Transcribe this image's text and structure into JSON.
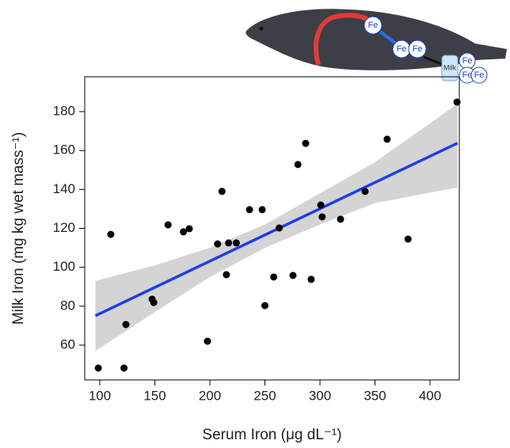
{
  "chart_data": {
    "type": "scatter",
    "x_label": "Serum Iron (μg dL⁻¹)",
    "y_label": "Milk Iron (mg kg wet mass⁻¹)",
    "xlim": [
      86.3,
      426.6
    ],
    "ylim": [
      42.1,
      197.9
    ],
    "xticks": [
      100,
      150,
      200,
      250,
      300,
      350,
      400
    ],
    "yticks": [
      60,
      80,
      100,
      120,
      140,
      160,
      180
    ],
    "color": "#000000",
    "x": [
      98.6,
      110,
      122,
      123.7,
      147.5,
      149,
      162,
      176,
      181.3,
      197.8,
      207,
      211,
      215,
      217,
      224,
      236,
      247.5,
      250,
      258,
      263,
      275.5,
      280,
      287,
      292,
      300.7,
      302,
      318.7,
      341,
      361,
      380,
      424.5
    ],
    "values": [
      48.2,
      116.9,
      48.2,
      70.6,
      83.6,
      81.9,
      121.8,
      118.2,
      119.8,
      62,
      112,
      139,
      96.2,
      112.5,
      112.5,
      129.6,
      129.6,
      80.3,
      95,
      120.2,
      95.8,
      152.8,
      163.7,
      93.8,
      132,
      125.9,
      124.7,
      139,
      165.8,
      114.5,
      184.9
    ],
    "fit": {
      "color": "#1a3fe6",
      "x": [
        96,
        425
      ],
      "values": [
        75.1,
        163.8
      ]
    },
    "band": {
      "color": "#d4d4d4",
      "x": [
        96,
        150,
        200,
        250,
        300,
        350,
        425
      ],
      "upper": [
        93,
        101,
        110,
        122,
        138,
        154,
        184
      ],
      "lower": [
        57,
        77,
        95,
        110,
        122,
        133,
        141
      ]
    }
  },
  "illustration": {
    "labels": [
      "Fe",
      "Fe",
      "Fe",
      "Milk",
      "Fe",
      "Fe",
      "Fe"
    ]
  }
}
